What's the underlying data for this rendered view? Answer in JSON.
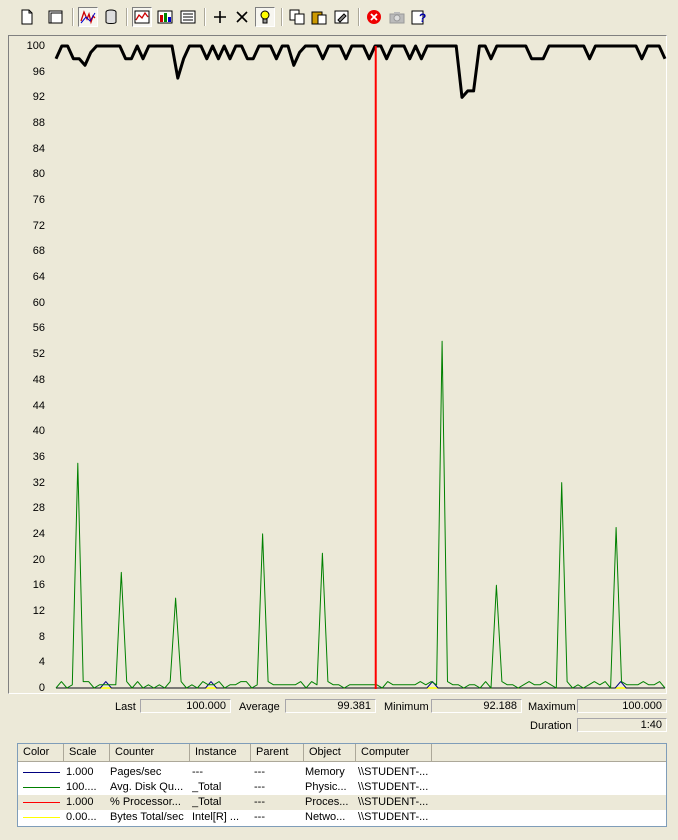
{
  "toolbar": {
    "buttons": [
      {
        "icon": "new-counter-set-icon"
      },
      {
        "icon": "clear-display-icon"
      },
      {
        "icon": "view-current-activity-icon",
        "pressed": true
      },
      {
        "icon": "view-log-data-icon"
      },
      {
        "icon": "view-graph-icon",
        "pressed": true
      },
      {
        "icon": "view-histogram-icon"
      },
      {
        "icon": "view-report-icon"
      },
      {
        "icon": "add-icon"
      },
      {
        "icon": "delete-icon"
      },
      {
        "icon": "highlight-icon",
        "pressed": true
      },
      {
        "icon": "copy-properties-icon"
      },
      {
        "icon": "paste-counter-list-icon"
      },
      {
        "icon": "properties-icon"
      },
      {
        "icon": "freeze-display-icon"
      },
      {
        "icon": "update-data-icon"
      },
      {
        "icon": "help-icon"
      }
    ]
  },
  "chart_data": {
    "type": "line",
    "ylim": [
      0,
      100
    ],
    "y_ticks": [
      "100",
      "96",
      "92",
      "88",
      "84",
      "80",
      "76",
      "72",
      "68",
      "64",
      "60",
      "56",
      "52",
      "48",
      "44",
      "40",
      "36",
      "32",
      "28",
      "24",
      "20",
      "16",
      "12",
      "8",
      "4",
      "0"
    ],
    "current_time_marker": 0.525,
    "series": [
      {
        "color": "#000000",
        "values": [
          98,
          100,
          100,
          98,
          98,
          97,
          99,
          100,
          100,
          100,
          100,
          100,
          98,
          98,
          100,
          98,
          100,
          100,
          100,
          100,
          100,
          95,
          98,
          100,
          100,
          100,
          98,
          100,
          98,
          100,
          98,
          100,
          100,
          98,
          98,
          100,
          100,
          100,
          98,
          100,
          100,
          97,
          99,
          100,
          100,
          100,
          98,
          100,
          100,
          100,
          98,
          100,
          100,
          100,
          98,
          100,
          100,
          98,
          100,
          100,
          100,
          98,
          100,
          98,
          100,
          100,
          100,
          100,
          100,
          100,
          92,
          93,
          93,
          100,
          100,
          98,
          100,
          100,
          100,
          100,
          100,
          100,
          98,
          98,
          98,
          100,
          100,
          100,
          100,
          100,
          100,
          100,
          98,
          100,
          100,
          100,
          100,
          100,
          100,
          100,
          100,
          98,
          100,
          100,
          100,
          98
        ]
      },
      {
        "color": "#008000",
        "values": [
          0,
          1,
          0,
          0.5,
          35,
          1,
          1,
          0,
          0.5,
          0.5,
          0.5,
          0.5,
          18,
          1,
          0,
          1,
          0,
          0.5,
          0,
          0.5,
          0,
          1,
          14,
          1,
          0,
          0.5,
          0,
          1,
          0.5,
          0.5,
          1,
          0,
          0.5,
          0.5,
          1,
          1,
          0,
          0.5,
          24,
          1,
          0.5,
          0.5,
          0.5,
          0.5,
          0.5,
          1,
          0,
          1,
          0.5,
          21,
          1,
          0.5,
          0.5,
          0,
          0.5,
          0.5,
          0.5,
          0.5,
          0.5,
          0.5,
          0,
          1,
          0.5,
          0.5,
          0.5,
          0.5,
          0.5,
          1,
          0.5,
          1,
          0.5,
          54,
          1,
          0.5,
          0.5,
          0,
          0.5,
          0.5,
          0,
          1,
          0,
          16,
          1,
          0.5,
          0.5,
          0,
          0.5,
          1,
          0.5,
          0.5,
          1,
          0.5,
          0,
          32,
          1,
          0,
          0.5,
          0,
          0.5,
          1,
          0.5,
          1,
          0,
          25,
          1,
          0.5,
          0.5,
          0.5,
          1,
          0.5,
          0.5,
          1,
          0
        ]
      },
      {
        "color": "#000080",
        "values": [
          0,
          0,
          0,
          0,
          0,
          0,
          0,
          0,
          0,
          1,
          0,
          0,
          0,
          0,
          0,
          0,
          0,
          0,
          0,
          0,
          0,
          0,
          0,
          0,
          0,
          0,
          0,
          0,
          1,
          0,
          0,
          0,
          0,
          0,
          0,
          0,
          0,
          0,
          0,
          0,
          0,
          0,
          0,
          0,
          0,
          0,
          0,
          0,
          0,
          0,
          0,
          0,
          0,
          0,
          0,
          0,
          0,
          0,
          0,
          0,
          0,
          0,
          0,
          0,
          0,
          0,
          0,
          0,
          1,
          0,
          0,
          0,
          0,
          0,
          0,
          0,
          0,
          0,
          0,
          0,
          0,
          0,
          0,
          0,
          0,
          0,
          0,
          0,
          0,
          0,
          0,
          0,
          0,
          0,
          0,
          0,
          0,
          0,
          0,
          0,
          0,
          0,
          1,
          0,
          0,
          0,
          0,
          0,
          0,
          0,
          0
        ]
      },
      {
        "color": "#ffff00",
        "values": [
          0,
          0,
          0,
          0,
          0,
          0,
          0,
          0,
          0,
          0,
          0,
          0,
          0,
          0,
          0,
          0,
          0,
          0,
          0,
          0,
          0,
          0,
          0,
          0,
          0,
          0,
          0,
          0,
          0,
          0,
          0,
          0,
          0,
          0,
          0,
          0,
          0,
          0,
          0,
          0,
          0,
          0,
          0,
          0,
          0,
          0,
          0,
          0,
          0,
          0,
          0,
          0,
          0,
          0,
          0,
          0,
          0,
          0,
          0,
          0,
          0,
          0,
          0,
          0,
          0,
          0,
          0,
          0,
          0,
          0,
          0,
          0,
          0,
          0,
          0,
          0,
          0,
          0,
          0,
          0,
          0,
          0,
          0,
          0,
          0,
          0,
          0,
          0,
          0,
          0,
          0,
          0,
          0,
          0,
          0,
          0,
          0,
          0,
          0,
          0,
          0,
          0,
          0,
          0,
          0,
          0,
          0,
          0,
          0,
          0,
          0
        ]
      }
    ]
  },
  "stats": {
    "last_label": "Last",
    "last_value": "100.000",
    "average_label": "Average",
    "average_value": "99.381",
    "minimum_label": "Minimum",
    "minimum_value": "92.188",
    "maximum_label": "Maximum",
    "maximum_value": "100.000",
    "duration_label": "Duration",
    "duration_value": "1:40"
  },
  "legend": {
    "headers": [
      "Color",
      "Scale",
      "Counter",
      "Instance",
      "Parent",
      "Object",
      "Computer"
    ],
    "rows": [
      {
        "color": "#000080",
        "scale": "1.000",
        "counter": "Pages/sec",
        "instance": "---",
        "parent": "---",
        "object": "Memory",
        "computer": "\\\\STUDENT-..."
      },
      {
        "color": "#008000",
        "scale": "100....",
        "counter": "Avg. Disk Qu...",
        "instance": "_Total",
        "parent": "---",
        "object": "Physic...",
        "computer": "\\\\STUDENT-..."
      },
      {
        "color": "#ff0000",
        "scale": "1.000",
        "counter": "% Processor...",
        "instance": "_Total",
        "parent": "---",
        "object": "Proces...",
        "computer": "\\\\STUDENT-..."
      },
      {
        "color": "#ffff00",
        "scale": "0.00...",
        "counter": "Bytes Total/sec",
        "instance": "Intel[R] ...",
        "parent": "---",
        "object": "Netwo...",
        "computer": "\\\\STUDENT-..."
      }
    ]
  }
}
